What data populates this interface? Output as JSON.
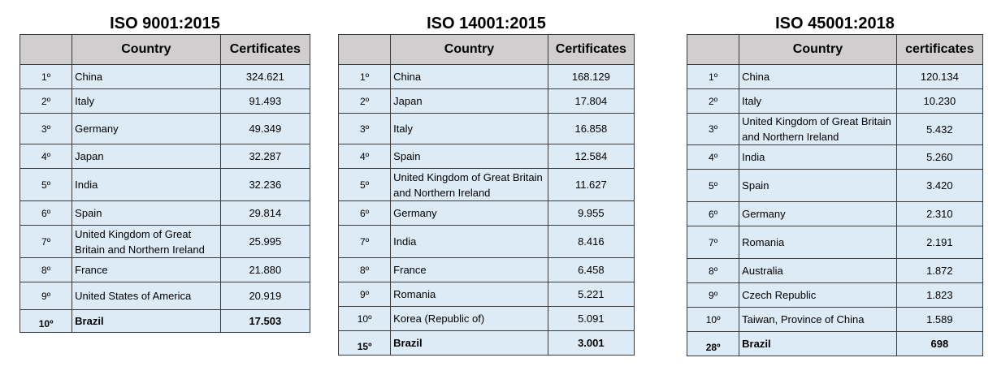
{
  "tables": [
    {
      "title": "ISO 9001:2015",
      "header": {
        "rank": "",
        "country": "Country",
        "certificates": "Certificates"
      },
      "rows": [
        {
          "rank": "1º",
          "country": "China",
          "certificates": "324.621"
        },
        {
          "rank": "2º",
          "country": "Italy",
          "certificates": "91.493"
        },
        {
          "rank": "3º",
          "country": "Germany",
          "certificates": "49.349"
        },
        {
          "rank": "4º",
          "country": "Japan",
          "certificates": "32.287"
        },
        {
          "rank": "5º",
          "country": "India",
          "certificates": "32.236"
        },
        {
          "rank": "6º",
          "country": "Spain",
          "certificates": "29.814"
        },
        {
          "rank": "7º",
          "country": "United Kingdom of Great Britain and Northern Ireland",
          "certificates": "25.995"
        },
        {
          "rank": "8º",
          "country": "France",
          "certificates": "21.880"
        },
        {
          "rank": "9º",
          "country": "United States of America",
          "certificates": "20.919"
        },
        {
          "rank": "10º",
          "country": "Brazil",
          "certificates": "17.503",
          "bold": true
        }
      ]
    },
    {
      "title": "ISO 14001:2015",
      "header": {
        "rank": "",
        "country": "Country",
        "certificates": "Certificates"
      },
      "rows": [
        {
          "rank": "1º",
          "country": "China",
          "certificates": "168.129"
        },
        {
          "rank": "2º",
          "country": "Japan",
          "certificates": "17.804"
        },
        {
          "rank": "3º",
          "country": "Italy",
          "certificates": "16.858"
        },
        {
          "rank": "4º",
          "country": "Spain",
          "certificates": "12.584"
        },
        {
          "rank": "5º",
          "country": "United Kingdom of Great Britain and Northern Ireland",
          "certificates": "11.627"
        },
        {
          "rank": "6º",
          "country": "Germany",
          "certificates": "9.955"
        },
        {
          "rank": "7º",
          "country": "India",
          "certificates": "8.416"
        },
        {
          "rank": "8º",
          "country": "France",
          "certificates": "6.458"
        },
        {
          "rank": "9º",
          "country": "Romania",
          "certificates": "5.221"
        },
        {
          "rank": "10º",
          "country": "Korea (Republic of)",
          "certificates": "5.091"
        },
        {
          "rank": "15º",
          "country": "Brazil",
          "certificates": "3.001",
          "bold": true
        }
      ]
    },
    {
      "title": "ISO 45001:2018",
      "header": {
        "rank": "",
        "country": "Country",
        "certificates": "certificates"
      },
      "rows": [
        {
          "rank": "1º",
          "country": "China",
          "certificates": "120.134"
        },
        {
          "rank": "2º",
          "country": "Italy",
          "certificates": "10.230"
        },
        {
          "rank": "3º",
          "country": "United Kingdom of Great Britain and Northern Ireland",
          "certificates": "5.432"
        },
        {
          "rank": "4º",
          "country": "India",
          "certificates": "5.260"
        },
        {
          "rank": "5º",
          "country": "Spain",
          "certificates": "3.420"
        },
        {
          "rank": "6º",
          "country": "Germany",
          "certificates": "2.310"
        },
        {
          "rank": "7º",
          "country": "Romania",
          "certificates": "2.191"
        },
        {
          "rank": "8º",
          "country": "Australia",
          "certificates": "1.872"
        },
        {
          "rank": "9º",
          "country": "Czech Republic",
          "certificates": "1.823"
        },
        {
          "rank": "10º",
          "country": "Taiwan, Province of China",
          "certificates": "1.589"
        },
        {
          "rank": "28º",
          "country": "Brazil",
          "certificates": "698",
          "bold": true
        }
      ]
    }
  ]
}
